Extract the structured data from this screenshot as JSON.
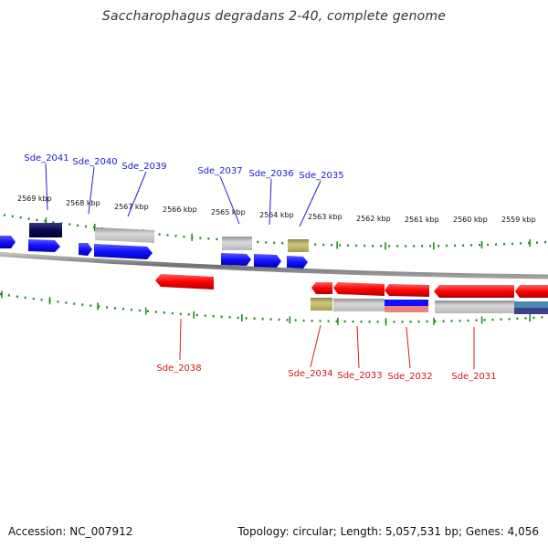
{
  "title": "Saccharophagus degradans 2-40, complete genome",
  "footer": {
    "accession": "Accession: NC_007912",
    "topology": "Topology: circular; Length: 5,057,531 bp; Genes: 4,056"
  },
  "scale_labels": [
    "2569 kbp",
    "2568 kbp",
    "2567 kbp",
    "2566 kbp",
    "2565 kbp",
    "2564 kbp",
    "2563 kbp",
    "2562 kbp",
    "2561 kbp",
    "2560 kbp",
    "2559 kbp"
  ],
  "top_gene_labels": [
    "Sde_2041",
    "Sde_2040",
    "Sde_2039",
    "Sde_2037",
    "Sde_2036",
    "Sde_2035"
  ],
  "bottom_gene_labels": [
    "Sde_2038",
    "Sde_2034",
    "Sde_2033",
    "Sde_2032",
    "Sde_2031"
  ],
  "colors": {
    "forward": "#1a1aff",
    "reverse": "#ff1a1a",
    "ticks": "#228b22",
    "label_forward": "#1a1acc",
    "label_reverse": "#cc1a1a"
  }
}
